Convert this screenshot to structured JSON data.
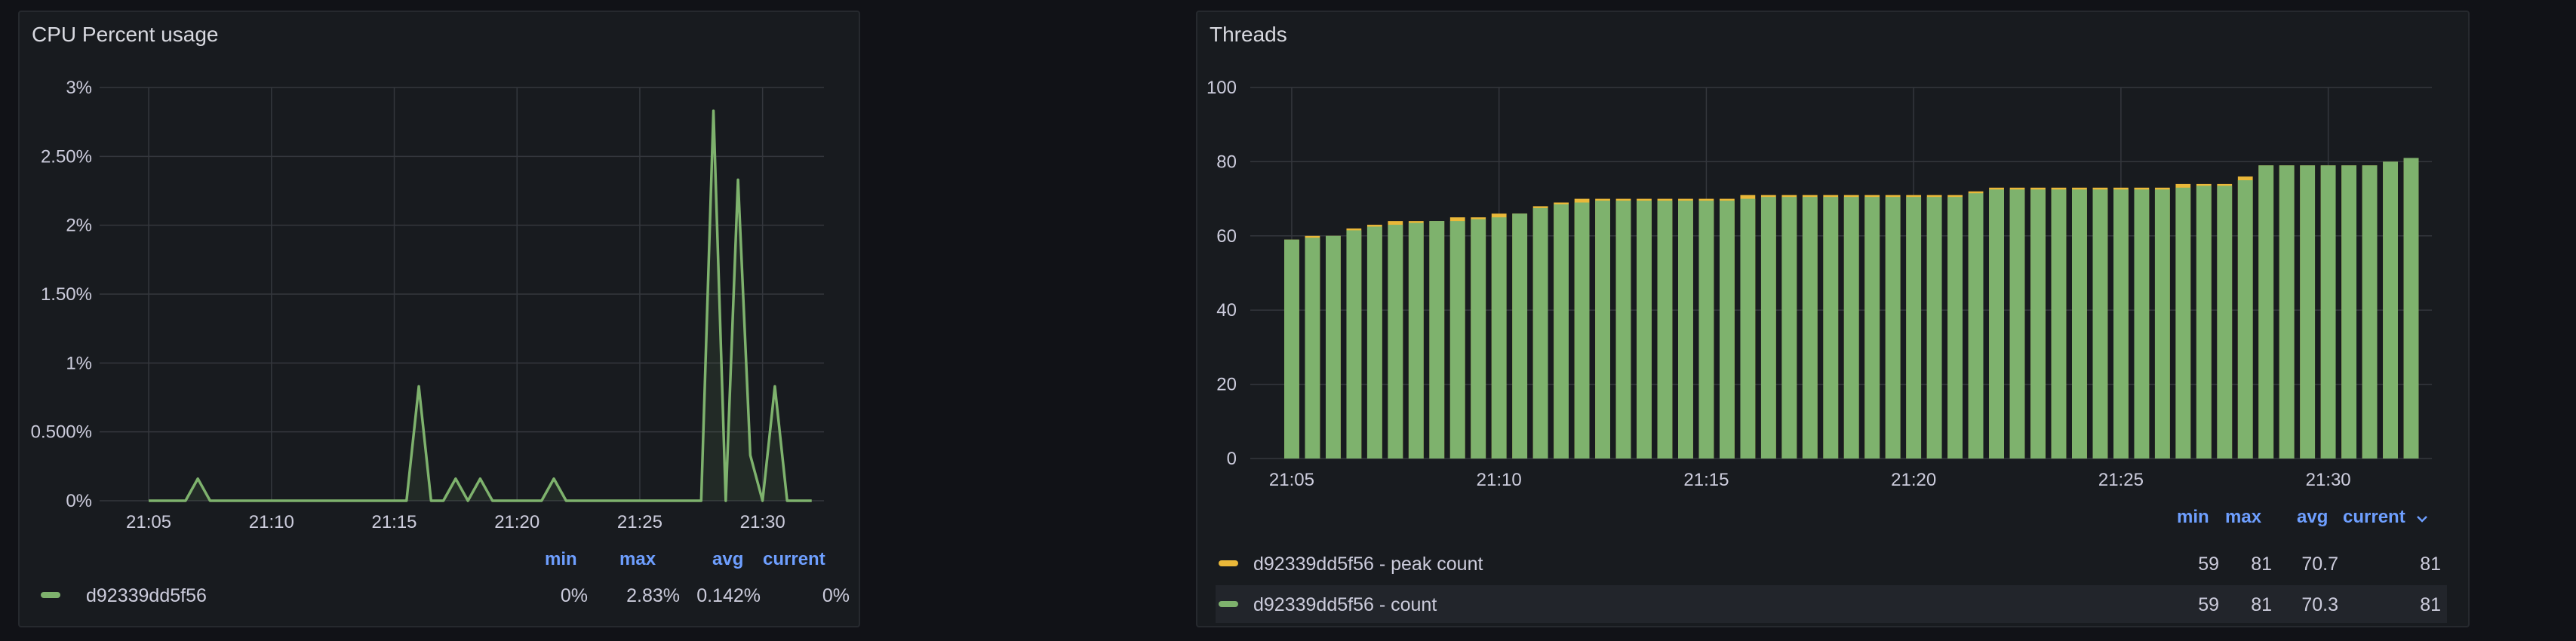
{
  "colors": {
    "background": "#111217",
    "panel": "#181b1f",
    "grid": "#34373d",
    "count_series": "#7eb26d",
    "peak_series": "#eab839",
    "legend_header": "#6e9fff"
  },
  "cpu_panel": {
    "title": "CPU Percent usage",
    "legend": {
      "headers": {
        "min": "min",
        "max": "max",
        "avg": "avg",
        "current": "current"
      },
      "rows": [
        {
          "name": "d92339dd5f56",
          "min": "0%",
          "max": "2.83%",
          "avg": "0.142%",
          "current": "0%"
        }
      ]
    }
  },
  "threads_panel": {
    "title": "Threads",
    "legend": {
      "headers": {
        "min": "min",
        "max": "max",
        "avg": "avg",
        "current": "current",
        "sort_icon": "chevron-down-icon"
      },
      "rows": [
        {
          "name": "d92339dd5f56 - peak count",
          "min": "59",
          "max": "81",
          "avg": "70.7",
          "current": "81",
          "color": "#eab839"
        },
        {
          "name": "d92339dd5f56 - count",
          "min": "59",
          "max": "81",
          "avg": "70.3",
          "current": "81",
          "color": "#7eb26d"
        }
      ]
    }
  },
  "chart_data": [
    {
      "type": "line",
      "title": "CPU Percent usage",
      "y_unit": "percent",
      "ylim": [
        0,
        3
      ],
      "y_ticks": [
        "0%",
        "0.500%",
        "1%",
        "1.50%",
        "2%",
        "2.50%",
        "3%"
      ],
      "x_ticks": [
        "21:05",
        "21:10",
        "21:15",
        "21:20",
        "21:25",
        "21:30"
      ],
      "xlim": [
        "21:05",
        "21:32"
      ],
      "grid": true,
      "series": [
        {
          "name": "d92339dd5f56",
          "color": "#7eb26d",
          "x": [
            "21:05",
            "21:06",
            "21:06:30",
            "21:07",
            "21:07:30",
            "21:08",
            "21:09",
            "21:10",
            "21:11",
            "21:12",
            "21:13",
            "21:14",
            "21:15",
            "21:15:30",
            "21:16",
            "21:16:30",
            "21:17",
            "21:17:30",
            "21:18",
            "21:18:30",
            "21:19",
            "21:20",
            "21:21",
            "21:21:30",
            "21:22",
            "21:23",
            "21:24",
            "21:25",
            "21:26",
            "21:27",
            "21:27:30",
            "21:28",
            "21:28:30",
            "21:29",
            "21:29:30",
            "21:30",
            "21:30:30",
            "21:31",
            "21:32"
          ],
          "values": [
            0,
            0,
            0,
            0.16,
            0,
            0,
            0,
            0,
            0,
            0,
            0,
            0,
            0,
            0,
            0.83,
            0,
            0,
            0.16,
            0,
            0.16,
            0,
            0,
            0,
            0.16,
            0,
            0,
            0,
            0,
            0,
            0,
            0,
            2.83,
            0,
            2.33,
            0.33,
            0,
            0.83,
            0,
            0
          ]
        }
      ]
    },
    {
      "type": "bar",
      "title": "Threads",
      "ylim": [
        0,
        100
      ],
      "y_ticks": [
        "0",
        "20",
        "40",
        "60",
        "80",
        "100"
      ],
      "x_ticks": [
        "21:05",
        "21:10",
        "21:15",
        "21:20",
        "21:25",
        "21:30"
      ],
      "grid": true,
      "stacked_overlay": true,
      "categories": [
        "21:05",
        "21:05:30",
        "21:06",
        "21:06:30",
        "21:07",
        "21:07:30",
        "21:08",
        "21:08:30",
        "21:09",
        "21:09:30",
        "21:10",
        "21:10:30",
        "21:11",
        "21:11:30",
        "21:12",
        "21:12:30",
        "21:13",
        "21:13:30",
        "21:14",
        "21:14:30",
        "21:15",
        "21:15:30",
        "21:16",
        "21:16:30",
        "21:17",
        "21:17:30",
        "21:18",
        "21:18:30",
        "21:19",
        "21:19:30",
        "21:20",
        "21:20:30",
        "21:21",
        "21:21:30",
        "21:22",
        "21:22:30",
        "21:23",
        "21:23:30",
        "21:24",
        "21:24:30",
        "21:25",
        "21:25:30",
        "21:26",
        "21:26:30",
        "21:27",
        "21:27:30",
        "21:28",
        "21:28:30",
        "21:29",
        "21:29:30",
        "21:30",
        "21:30:30",
        "21:31",
        "21:31:30",
        "21:32"
      ],
      "series": [
        {
          "name": "d92339dd5f56 - peak count",
          "color": "#eab839",
          "values": [
            59,
            60,
            60,
            62,
            63,
            64,
            64,
            64,
            65,
            65,
            66,
            66,
            68,
            69,
            70,
            70,
            70,
            70,
            70,
            70,
            70,
            70,
            71,
            71,
            71,
            71,
            71,
            71,
            71,
            71,
            71,
            71,
            71,
            72,
            73,
            73,
            73,
            73,
            73,
            73,
            73,
            73,
            73,
            74,
            74,
            74,
            76,
            79,
            79,
            79,
            79,
            79,
            79,
            80,
            81
          ]
        },
        {
          "name": "d92339dd5f56 - count",
          "color": "#7eb26d",
          "values": [
            59,
            59.5,
            60,
            61.5,
            62.5,
            63,
            63.5,
            64,
            64,
            64.5,
            65,
            66,
            67.5,
            68.5,
            69,
            69.5,
            69.5,
            69.5,
            69.5,
            69.5,
            69.5,
            69.5,
            70,
            70.5,
            70.5,
            70.5,
            70.5,
            70.5,
            70.5,
            70.5,
            70.5,
            70.5,
            70.5,
            71.5,
            72.5,
            72.5,
            72.5,
            72.5,
            72.5,
            72.5,
            72.5,
            72.5,
            72.5,
            73,
            73.5,
            73.5,
            75,
            79,
            79,
            79,
            79,
            79,
            79,
            80,
            81
          ]
        }
      ]
    }
  ]
}
